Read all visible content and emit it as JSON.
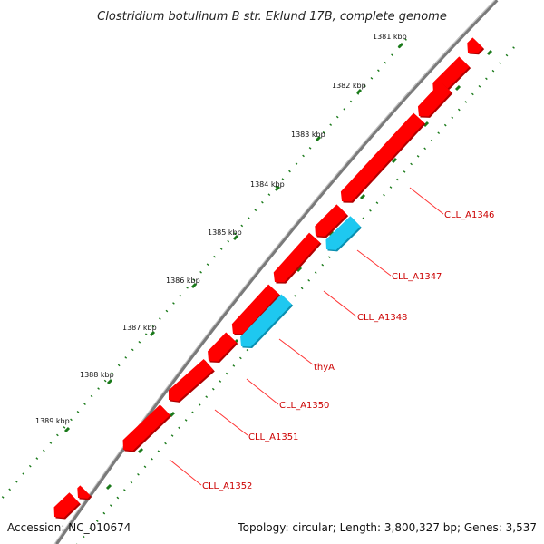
{
  "title": "Clostridium botulinum B str. Eklund 17B, complete genome",
  "footer": {
    "accession": "Accession: NC_010674",
    "summary": "Topology: circular; Length: 3,800,327 bp; Genes: 3,537"
  },
  "colors": {
    "backbone": "#7a7a7a",
    "cds": "#ff0000",
    "cds_shadow": "#b00000",
    "rna": "#1ec8f0",
    "rna_shadow": "#0a8fb0",
    "label": "#cc0000",
    "leader": "#ff3333",
    "ticks": "#1a7a1a"
  },
  "ruler": [
    {
      "label": "1381 kbp",
      "kbp": 1381
    },
    {
      "label": "1382 kbp",
      "kbp": 1382
    },
    {
      "label": "1383 kbp",
      "kbp": 1383
    },
    {
      "label": "1384 kbp",
      "kbp": 1384
    },
    {
      "label": "1385 kbp",
      "kbp": 1385
    },
    {
      "label": "1386 kbp",
      "kbp": 1386
    },
    {
      "label": "1387 kbp",
      "kbp": 1387
    },
    {
      "label": "1388 kbp",
      "kbp": 1388
    },
    {
      "label": "1389 kbp",
      "kbp": 1389
    }
  ],
  "gene_labels": [
    {
      "name": "CLL_A1346"
    },
    {
      "name": "CLL_A1347"
    },
    {
      "name": "CLL_A1348"
    },
    {
      "name": "thyA"
    },
    {
      "name": "CLL_A1350"
    },
    {
      "name": "CLL_A1351"
    },
    {
      "name": "CLL_A1352"
    }
  ]
}
